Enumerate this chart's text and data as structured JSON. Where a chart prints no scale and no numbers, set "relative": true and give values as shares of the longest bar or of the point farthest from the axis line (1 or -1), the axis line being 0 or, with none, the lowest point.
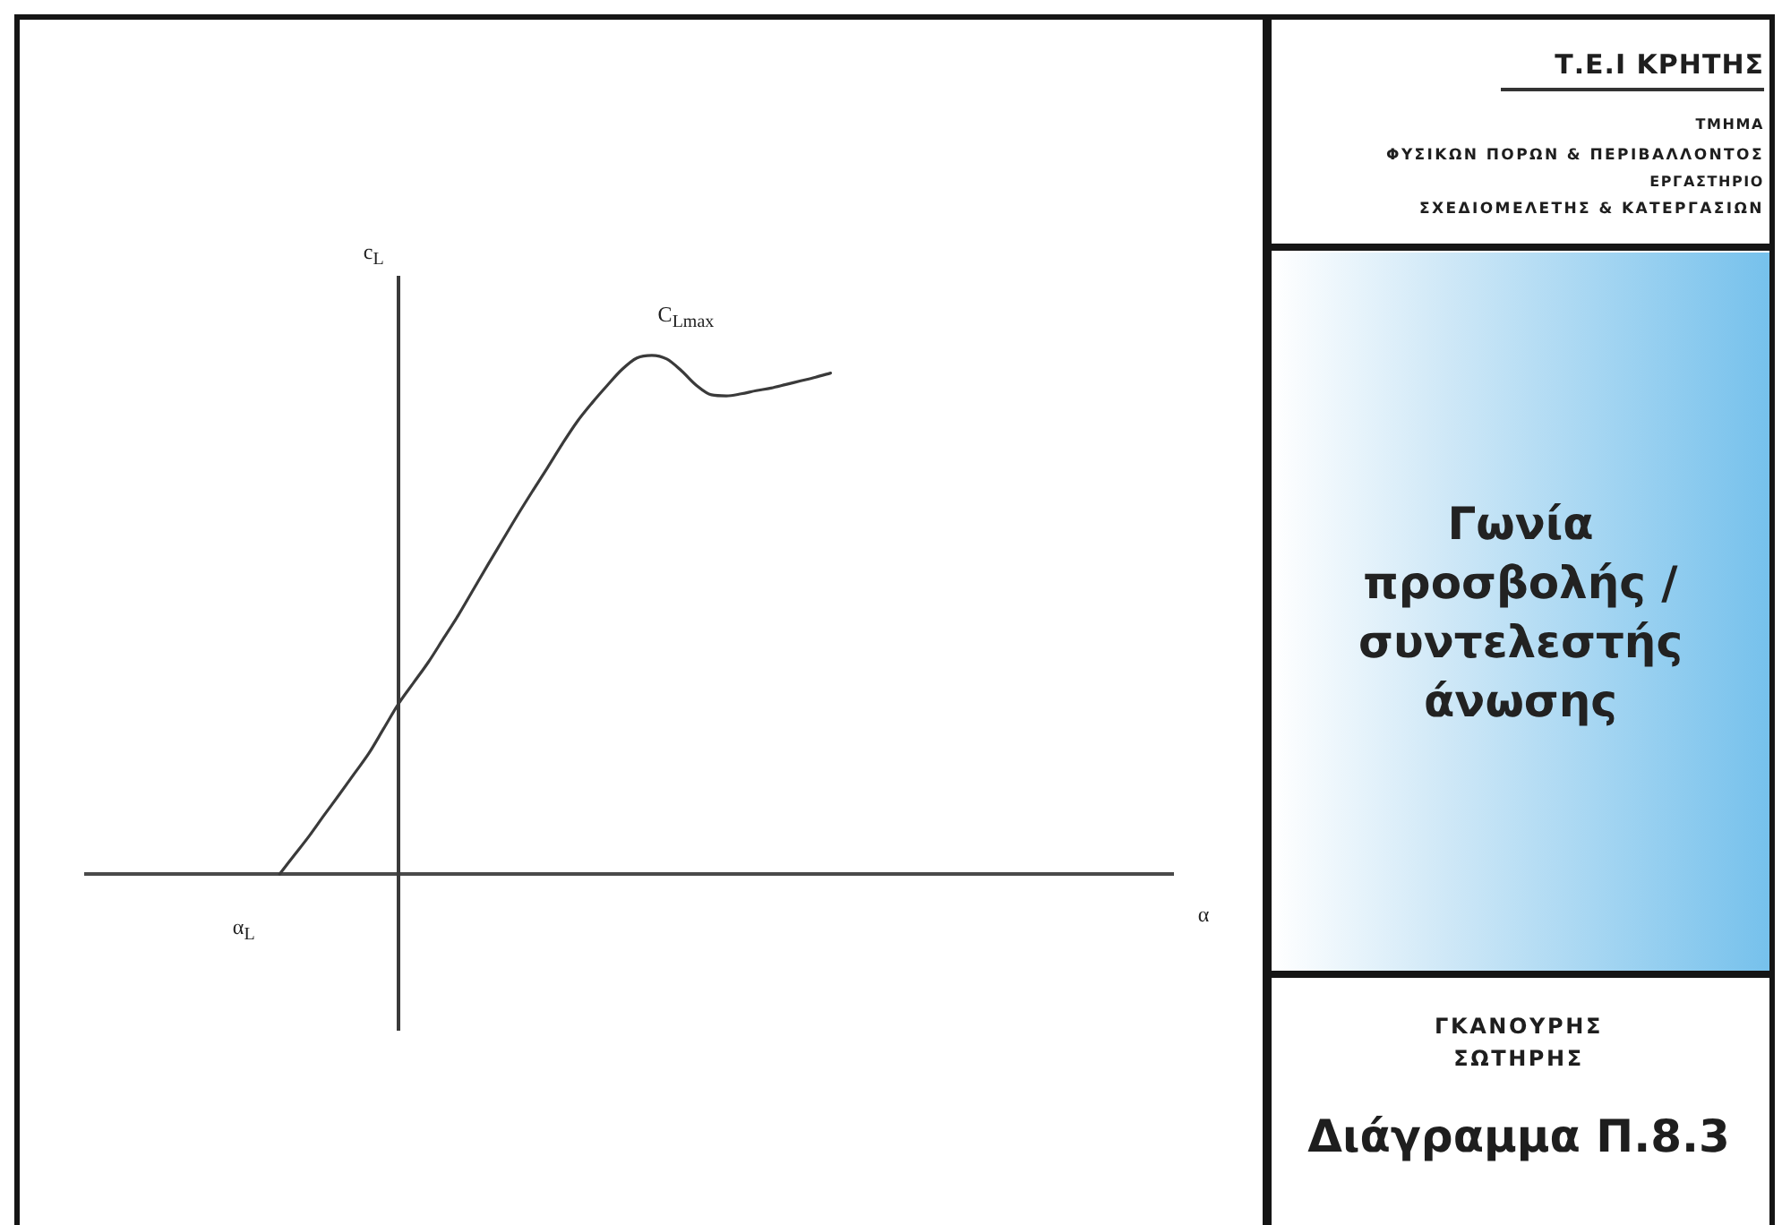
{
  "chart_data": {
    "type": "line",
    "title": "Γωνία προσβολής / συντελεστής άνωσης",
    "xlabel": "α",
    "ylabel": "c$_{L}$",
    "relative": true,
    "marker": "none",
    "categories": [
      null,
      null,
      null,
      null,
      null,
      null,
      null,
      null,
      null,
      null,
      null,
      null,
      null,
      null,
      null,
      null,
      null,
      null,
      null,
      null,
      null,
      null,
      null,
      null,
      null,
      null,
      null,
      null,
      null,
      null,
      null,
      null,
      null,
      null,
      null,
      null,
      null,
      null,
      null,
      null,
      null,
      null,
      null,
      null,
      null,
      null,
      null,
      null,
      null,
      null,
      null,
      null,
      null,
      null,
      null,
      null,
      null,
      null,
      null,
      null,
      null,
      null,
      null,
      null,
      null,
      null,
      null,
      null,
      null,
      null,
      null,
      null,
      null,
      null
    ],
    "series": [
      {
        "color": "#3a3a3a",
        "values": [
          null,
          null,
          null,
          null,
          null,
          null,
          null,
          null,
          null,
          null,
          null,
          null,
          null,
          0,
          0.037,
          0.074,
          0.114,
          0.153,
          0.193,
          0.233,
          0.281,
          0.329,
          0.369,
          0.409,
          0.454,
          0.499,
          0.548,
          0.597,
          0.645,
          0.693,
          0.739,
          0.784,
          0.83,
          0.873,
          0.909,
          0.942,
          0.973,
          0.995,
          1,
          0.993,
          0.97,
          0.942,
          0.924,
          0.922,
          0.926,
          0.932,
          0.937,
          0.944,
          0.951,
          0.958,
          0.966,
          null,
          null,
          null,
          null,
          null,
          null,
          null,
          null,
          null,
          null,
          null,
          null,
          null,
          null,
          null,
          null,
          null,
          null,
          null,
          null,
          null,
          null,
          null
        ]
      }
    ],
    "annotations": [
      "C$_{Lmax}$",
      "α$_{L}$",
      "Τ.Ε.Ι ΚΡΗΤΗΣ",
      "ΤΜΗΜΑ",
      "ΦΥΣΙΚΩΝ ΠΟΡΩΝ & ΠΕΡΙΒΑΛΛΟΝΤΟΣ",
      "ΕΡΓΑΣΤΗΡΙΟ",
      "ΣΧΕΔΙΟΜΕΛΕΤΗΣ & ΚΑΤΕΡΓΑΣΙΩΝ",
      "ΓΚΑΝΟΥΡΗΣ ΣΩΤΗΡΗΣ",
      "Διάγραμμα Π.8.3"
    ]
  }
}
